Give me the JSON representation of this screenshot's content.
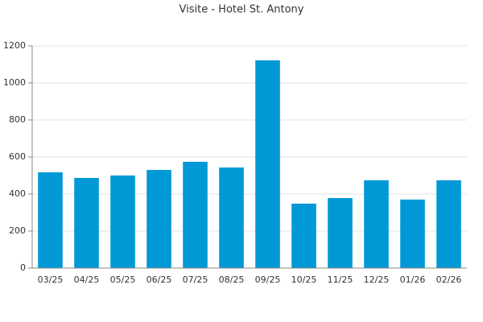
{
  "chart_data": {
    "type": "bar",
    "title": "Visite - Hotel St. Antony",
    "categories": [
      "03/25",
      "04/25",
      "05/25",
      "06/25",
      "07/25",
      "08/25",
      "09/25",
      "10/25",
      "11/25",
      "12/25",
      "01/26",
      "02/26"
    ],
    "values": [
      517,
      487,
      500,
      530,
      574,
      543,
      1122,
      348,
      378,
      474,
      370,
      474
    ],
    "color": "#0099d6",
    "ylim": [
      0,
      1200
    ],
    "yticks": [
      0,
      200,
      400,
      600,
      800,
      1000,
      1200
    ],
    "grid": true
  }
}
